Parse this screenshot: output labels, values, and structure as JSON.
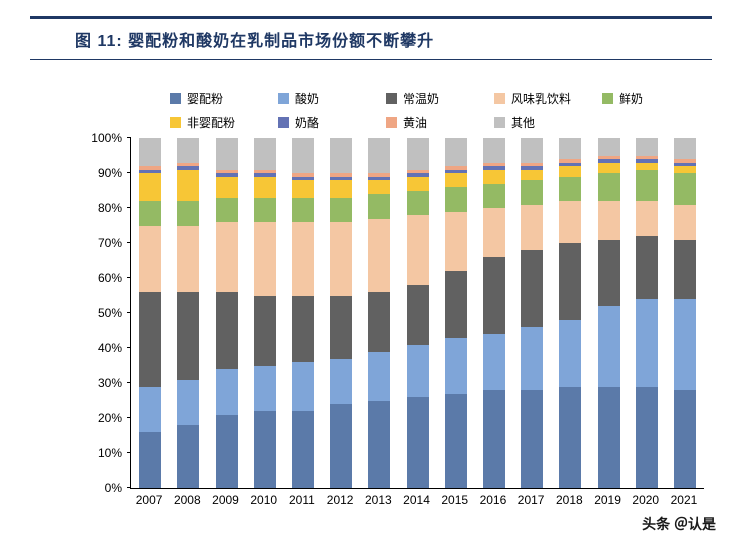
{
  "header": {
    "title": "图 11: 婴配粉和酸奶在乳制品市场份额不断攀升",
    "accent_color": "#1f3864"
  },
  "watermark": "头条 ＠认是",
  "chart_data": {
    "type": "bar",
    "stacked": true,
    "percent_stacked": true,
    "title": "婴配粉和酸奶在乳制品市场份额不断攀升",
    "xlabel": "",
    "ylabel": "",
    "ylim": [
      0,
      100
    ],
    "ytick_step": 10,
    "ytick_labels": [
      "0%",
      "10%",
      "20%",
      "30%",
      "40%",
      "50%",
      "60%",
      "70%",
      "80%",
      "90%",
      "100%"
    ],
    "grid": false,
    "legend_position": "top",
    "categories": [
      "2007",
      "2008",
      "2009",
      "2010",
      "2011",
      "2012",
      "2013",
      "2014",
      "2015",
      "2016",
      "2017",
      "2018",
      "2019",
      "2020",
      "2021"
    ],
    "series": [
      {
        "name": "婴配粉",
        "color": "#5b7aa9",
        "values": [
          16,
          18,
          21,
          22,
          22,
          24,
          25,
          26,
          27,
          28,
          28,
          29,
          29,
          29,
          28
        ]
      },
      {
        "name": "酸奶",
        "color": "#7fa5d8",
        "values": [
          13,
          13,
          13,
          13,
          14,
          13,
          14,
          15,
          16,
          16,
          18,
          19,
          23,
          25,
          26
        ]
      },
      {
        "name": "常温奶",
        "color": "#616161",
        "values": [
          27,
          25,
          22,
          20,
          19,
          18,
          17,
          17,
          19,
          22,
          22,
          22,
          19,
          18,
          17
        ]
      },
      {
        "name": "风味乳饮料",
        "color": "#f4c7a3",
        "values": [
          19,
          19,
          20,
          21,
          21,
          21,
          21,
          20,
          17,
          14,
          13,
          12,
          11,
          10,
          10
        ]
      },
      {
        "name": "鲜奶",
        "color": "#94ba64",
        "values": [
          7,
          7,
          7,
          7,
          7,
          7,
          7,
          7,
          7,
          7,
          7,
          7,
          8,
          9,
          9
        ]
      },
      {
        "name": "非婴配粉",
        "color": "#f7c636",
        "values": [
          8,
          9,
          6,
          6,
          5,
          5,
          4,
          4,
          4,
          4,
          3,
          3,
          3,
          2,
          2
        ]
      },
      {
        "name": "奶酪",
        "color": "#6372b4",
        "values": [
          1,
          1,
          1,
          1,
          1,
          1,
          1,
          1,
          1,
          1,
          1,
          1,
          1,
          1,
          1
        ]
      },
      {
        "name": "黄油",
        "color": "#efa684",
        "values": [
          1,
          1,
          1,
          1,
          1,
          1,
          1,
          1,
          1,
          1,
          1,
          1,
          1,
          1,
          1
        ]
      },
      {
        "name": "其他",
        "color": "#c0c0c0",
        "values": [
          8,
          7,
          9,
          9,
          10,
          10,
          10,
          9,
          8,
          7,
          7,
          6,
          5,
          5,
          6
        ]
      }
    ]
  }
}
